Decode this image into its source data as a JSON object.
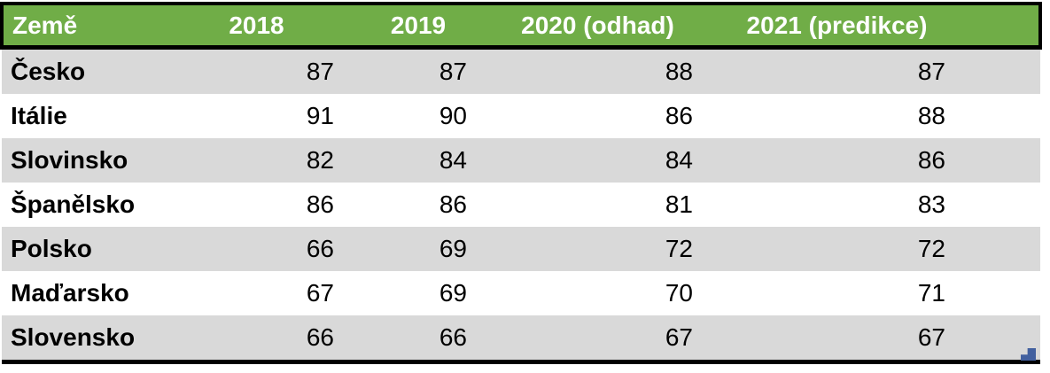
{
  "chart_data": {
    "type": "table",
    "columns": [
      "Země",
      "2018",
      "2019",
      "2020 (odhad)",
      "2021 (predikce)"
    ],
    "rows": [
      [
        "Česko",
        87,
        87,
        88,
        87
      ],
      [
        "Itálie",
        91,
        90,
        86,
        88
      ],
      [
        "Slovinsko",
        82,
        84,
        84,
        86
      ],
      [
        "Španělsko",
        86,
        86,
        81,
        83
      ],
      [
        "Polsko",
        66,
        69,
        72,
        72
      ],
      [
        "Maďarsko",
        67,
        69,
        70,
        71
      ],
      [
        "Slovensko",
        66,
        66,
        67,
        67
      ]
    ],
    "layout": {
      "header_align": "center",
      "first_column_align": "left",
      "value_align": "right",
      "banded_rows": true
    }
  },
  "colors": {
    "header_bg": "#70AD47",
    "header_text": "#FFFFFF",
    "row_band": "#D9D9D9",
    "row_plain": "#FFFFFF",
    "border": "#000000",
    "resize_handle": "#42609F"
  },
  "icons": {
    "resize_handle": "table-resize-handle"
  }
}
